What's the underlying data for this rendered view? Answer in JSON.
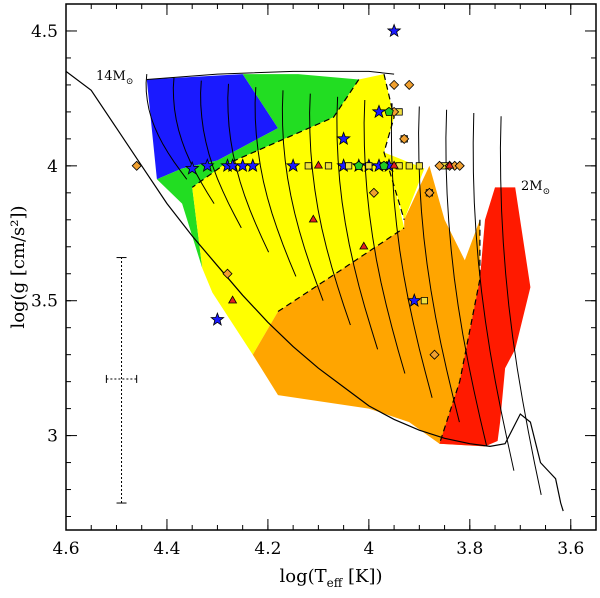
{
  "chart_data": {
    "type": "scatter",
    "title": "",
    "xlabel": "log(T",
    "xlabel_sub": "eff",
    "xlabel_tail": " [K])",
    "ylabel": "log(g [cm/s²])",
    "xlim": [
      4.6,
      3.55
    ],
    "ylim": [
      2.65,
      4.6
    ],
    "x_ticks": [
      4.6,
      4.4,
      4.2,
      4.0,
      3.8,
      3.6
    ],
    "x_tick_labels": [
      "4.6",
      "4.4",
      "4.2",
      "4",
      "3.8",
      "3.6"
    ],
    "y_ticks": [
      3.0,
      3.5,
      4.0,
      4.5
    ],
    "y_tick_labels": [
      "3",
      "3.5",
      "4",
      "4.5"
    ],
    "annotations": [
      {
        "text": "14M",
        "sub": "⊙",
        "x": 4.53,
        "y": 4.33
      },
      {
        "text": "2M",
        "sub": "⊙",
        "x": 3.7,
        "y": 3.9
      }
    ],
    "zams": [
      [
        4.6,
        4.35
      ],
      [
        4.55,
        4.28
      ],
      [
        4.5,
        4.14
      ],
      [
        4.45,
        4.0
      ],
      [
        4.4,
        3.86
      ],
      [
        4.35,
        3.74
      ],
      [
        4.3,
        3.63
      ],
      [
        4.25,
        3.52
      ],
      [
        4.2,
        3.42
      ],
      [
        4.15,
        3.33
      ],
      [
        4.1,
        3.25
      ],
      [
        4.05,
        3.18
      ],
      [
        4.0,
        3.11
      ],
      [
        3.95,
        3.06
      ],
      [
        3.9,
        3.02
      ],
      [
        3.85,
        2.99
      ],
      [
        3.8,
        2.97
      ],
      [
        3.76,
        2.96
      ],
      [
        3.73,
        2.97
      ],
      [
        3.7,
        3.08
      ],
      [
        3.68,
        3.05
      ],
      [
        3.66,
        2.9
      ],
      [
        3.64,
        2.86
      ],
      [
        3.63,
        2.84
      ],
      [
        3.62,
        2.75
      ],
      [
        3.615,
        2.72
      ]
    ],
    "instability_regions": [
      {
        "name": "blue",
        "color": "#1a1aff",
        "boundary": [
          [
            4.44,
            4.32
          ],
          [
            4.25,
            4.34
          ],
          [
            4.18,
            4.14
          ],
          [
            4.3,
            4.02
          ],
          [
            4.37,
            3.99
          ],
          [
            4.42,
            3.95
          ]
        ]
      },
      {
        "name": "green",
        "color": "#22dd22",
        "boundary": [
          [
            4.25,
            4.34
          ],
          [
            4.14,
            4.34
          ],
          [
            4.02,
            4.32
          ],
          [
            4.07,
            4.18
          ],
          [
            4.18,
            4.09
          ],
          [
            4.29,
            4.0
          ],
          [
            4.35,
            3.92
          ],
          [
            4.33,
            3.62
          ],
          [
            4.37,
            3.86
          ],
          [
            4.42,
            3.95
          ],
          [
            4.37,
            3.99
          ],
          [
            4.3,
            4.02
          ],
          [
            4.18,
            4.14
          ]
        ]
      },
      {
        "name": "yellow",
        "color": "#ffff00",
        "boundary": [
          [
            4.02,
            4.32
          ],
          [
            3.97,
            4.34
          ],
          [
            3.95,
            4.18
          ],
          [
            3.97,
            4.05
          ],
          [
            3.89,
            3.99
          ],
          [
            3.93,
            3.8
          ],
          [
            3.95,
            3.93
          ],
          [
            3.93,
            3.77
          ],
          [
            4.05,
            3.62
          ],
          [
            4.18,
            3.46
          ],
          [
            4.23,
            3.3
          ],
          [
            4.31,
            3.53
          ],
          [
            4.33,
            3.62
          ],
          [
            4.35,
            3.92
          ],
          [
            4.29,
            4.0
          ],
          [
            4.18,
            4.09
          ],
          [
            4.07,
            4.18
          ]
        ]
      },
      {
        "name": "orange",
        "color": "#ffa500",
        "boundary": [
          [
            4.05,
            3.62
          ],
          [
            4.18,
            3.46
          ],
          [
            4.23,
            3.3
          ],
          [
            4.18,
            3.15
          ],
          [
            4.0,
            3.1
          ],
          [
            3.92,
            3.05
          ],
          [
            3.86,
            2.97
          ],
          [
            3.77,
            2.96
          ],
          [
            3.82,
            3.2
          ],
          [
            3.78,
            3.58
          ],
          [
            3.78,
            3.8
          ],
          [
            3.81,
            3.65
          ],
          [
            3.85,
            3.8
          ],
          [
            3.88,
            4.0
          ],
          [
            3.93,
            3.8
          ],
          [
            3.93,
            3.77
          ]
        ]
      },
      {
        "name": "red",
        "color": "#ff1a00",
        "boundary": [
          [
            3.78,
            3.58
          ],
          [
            3.77,
            3.8
          ],
          [
            3.75,
            3.92
          ],
          [
            3.71,
            3.92
          ],
          [
            3.68,
            3.55
          ],
          [
            3.71,
            3.32
          ],
          [
            3.73,
            3.25
          ],
          [
            3.74,
            3.05
          ],
          [
            3.745,
            2.98
          ],
          [
            3.77,
            2.96
          ],
          [
            3.86,
            2.97
          ],
          [
            3.82,
            3.2
          ]
        ]
      }
    ],
    "error_bars": [
      {
        "x": 4.49,
        "y": 3.21,
        "x_err": 0.03,
        "y_low": 2.75,
        "y_high": 3.66
      }
    ],
    "series": [
      {
        "name": "stars",
        "marker": "star",
        "color": "#1a1aff",
        "points": [
          [
            3.95,
            4.5
          ],
          [
            3.98,
            4.2
          ],
          [
            4.05,
            4.1
          ],
          [
            4.35,
            3.99
          ],
          [
            4.32,
            4.0
          ],
          [
            4.28,
            4.0
          ],
          [
            4.27,
            4.0
          ],
          [
            4.25,
            4.0
          ],
          [
            4.23,
            4.0
          ],
          [
            4.15,
            4.0
          ],
          [
            4.05,
            4.0
          ],
          [
            4.02,
            4.0
          ],
          [
            4.0,
            4.0
          ],
          [
            3.98,
            4.0
          ],
          [
            3.96,
            4.0
          ],
          [
            3.91,
            3.5
          ],
          [
            4.3,
            3.43
          ]
        ]
      },
      {
        "name": "squares",
        "marker": "square",
        "color": "#f0e040",
        "points": [
          [
            4.12,
            4.0
          ],
          [
            4.08,
            4.0
          ],
          [
            4.04,
            4.0
          ],
          [
            4.0,
            4.0
          ],
          [
            3.97,
            4.0
          ],
          [
            3.94,
            4.0
          ],
          [
            3.92,
            4.0
          ],
          [
            3.9,
            4.0
          ],
          [
            3.85,
            4.0
          ],
          [
            3.88,
            3.9
          ],
          [
            3.94,
            4.2
          ],
          [
            3.93,
            4.1
          ],
          [
            3.89,
            3.5
          ]
        ]
      },
      {
        "name": "diamonds",
        "marker": "diamond",
        "color": "#f0a030",
        "points": [
          [
            4.46,
            4.0
          ],
          [
            4.28,
            3.6
          ],
          [
            3.95,
            4.3
          ],
          [
            3.92,
            4.3
          ],
          [
            3.95,
            4.2
          ],
          [
            3.93,
            4.1
          ],
          [
            3.86,
            4.0
          ],
          [
            3.84,
            4.0
          ],
          [
            3.83,
            4.0
          ],
          [
            3.82,
            4.0
          ],
          [
            3.88,
            3.9
          ],
          [
            3.99,
            3.9
          ],
          [
            3.87,
            3.3
          ]
        ]
      },
      {
        "name": "triangles",
        "marker": "triangle",
        "color": "#e02020",
        "points": [
          [
            4.27,
            3.5
          ],
          [
            4.11,
            3.8
          ],
          [
            4.1,
            4.0
          ],
          [
            4.01,
            3.7
          ],
          [
            3.95,
            4.0
          ],
          [
            3.84,
            4.0
          ]
        ]
      },
      {
        "name": "pentagons",
        "marker": "pentagon",
        "color": "#22cc22",
        "points": [
          [
            3.96,
            4.2
          ],
          [
            4.02,
            4.0
          ],
          [
            3.97,
            4.0
          ]
        ]
      }
    ]
  }
}
